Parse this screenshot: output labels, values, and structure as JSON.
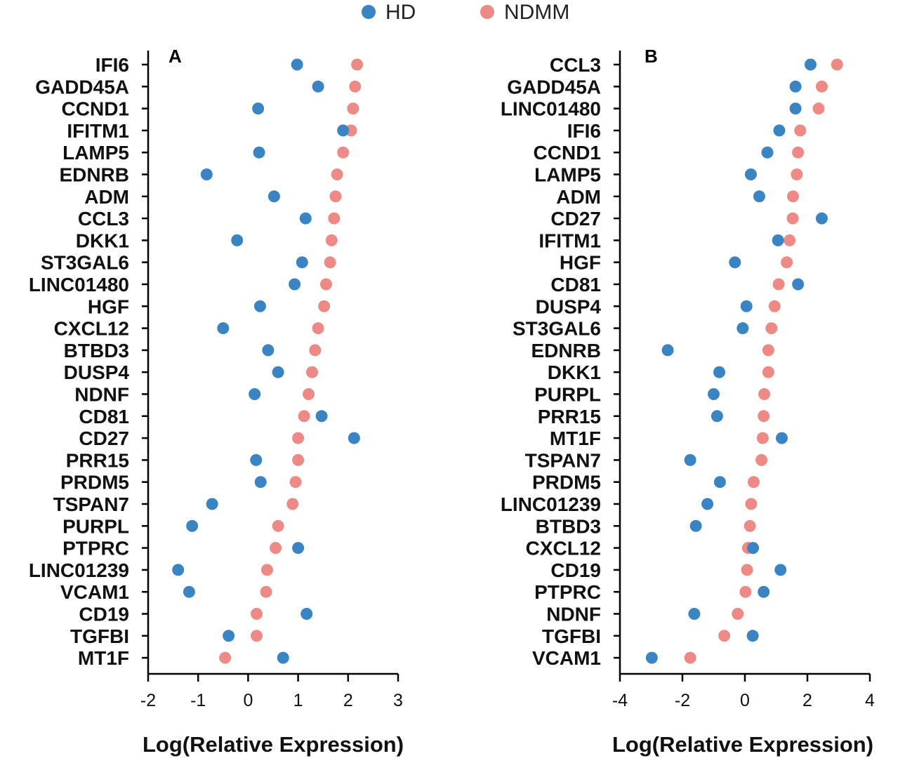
{
  "colors": {
    "HD": "#3a84c4",
    "NDMM": "#ee8a86"
  },
  "legend": [
    {
      "name": "HD",
      "color": "#3a84c4"
    },
    {
      "name": "NDMM",
      "color": "#ee8a86"
    }
  ],
  "chart_data": [
    {
      "type": "scatter",
      "panel_label": "A",
      "xlabel": "Log(Relative Expression)",
      "xlim": [
        -2,
        3
      ],
      "xticks": [
        "-2",
        "-1",
        "0",
        "1",
        "2",
        "3"
      ],
      "categories": [
        "IFI6",
        "GADD45A",
        "CCND1",
        "IFITM1",
        "LAMP5",
        "EDNRB",
        "ADM",
        "CCL3",
        "DKK1",
        "ST3GAL6",
        "LINC01480",
        "HGF",
        "CXCL12",
        "BTBD3",
        "DUSP4",
        "NDNF",
        "CD81",
        "CD27",
        "PRR15",
        "PRDM5",
        "TSPAN7",
        "PURPL",
        "PTPRC",
        "LINC01239",
        "VCAM1",
        "CD19",
        "TGFBI",
        "MT1F"
      ],
      "series": [
        {
          "name": "HD",
          "values": [
            0.98,
            1.4,
            0.2,
            1.9,
            0.22,
            -0.83,
            0.52,
            1.15,
            -0.22,
            1.08,
            0.93,
            0.24,
            -0.5,
            0.4,
            0.6,
            0.13,
            1.47,
            2.12,
            0.16,
            0.25,
            -0.72,
            -1.12,
            1.0,
            -1.4,
            -1.18,
            1.17,
            -0.39,
            0.7
          ]
        },
        {
          "name": "NDMM",
          "values": [
            2.18,
            2.14,
            2.1,
            2.06,
            1.9,
            1.78,
            1.75,
            1.72,
            1.67,
            1.64,
            1.56,
            1.52,
            1.4,
            1.34,
            1.28,
            1.21,
            1.12,
            1.0,
            1.0,
            0.95,
            0.89,
            0.6,
            0.55,
            0.38,
            0.36,
            0.17,
            0.17,
            -0.46
          ]
        }
      ]
    },
    {
      "type": "scatter",
      "panel_label": "B",
      "xlabel": "Log(Relative Expression)",
      "xlim": [
        -4,
        4
      ],
      "xticks": [
        "-4",
        "-2",
        "0",
        "2",
        "4"
      ],
      "categories": [
        "CCL3",
        "GADD45A",
        "LINC01480",
        "IFI6",
        "CCND1",
        "LAMP5",
        "ADM",
        "CD27",
        "IFITM1",
        "HGF",
        "CD81",
        "DUSP4",
        "ST3GAL6",
        "EDNRB",
        "DKK1",
        "PURPL",
        "PRR15",
        "MT1F",
        "TSPAN7",
        "PRDM5",
        "LINC01239",
        "BTBD3",
        "CXCL12",
        "CD19",
        "PTPRC",
        "NDNF",
        "TGFBI",
        "VCAM1"
      ],
      "series": [
        {
          "name": "HD",
          "values": [
            2.1,
            1.62,
            1.62,
            1.1,
            0.72,
            0.19,
            0.46,
            2.46,
            1.06,
            -0.32,
            1.7,
            0.05,
            -0.07,
            -2.47,
            -0.82,
            -1.0,
            -0.89,
            1.18,
            -1.75,
            -0.8,
            -1.2,
            -1.57,
            0.26,
            1.14,
            0.6,
            -1.62,
            0.25,
            -2.98
          ]
        },
        {
          "name": "NDMM",
          "values": [
            2.95,
            2.46,
            2.36,
            1.77,
            1.7,
            1.66,
            1.54,
            1.53,
            1.43,
            1.34,
            1.08,
            0.95,
            0.85,
            0.75,
            0.75,
            0.62,
            0.6,
            0.57,
            0.53,
            0.28,
            0.2,
            0.16,
            0.1,
            0.07,
            0.02,
            -0.23,
            -0.66,
            -1.75
          ]
        }
      ]
    }
  ]
}
